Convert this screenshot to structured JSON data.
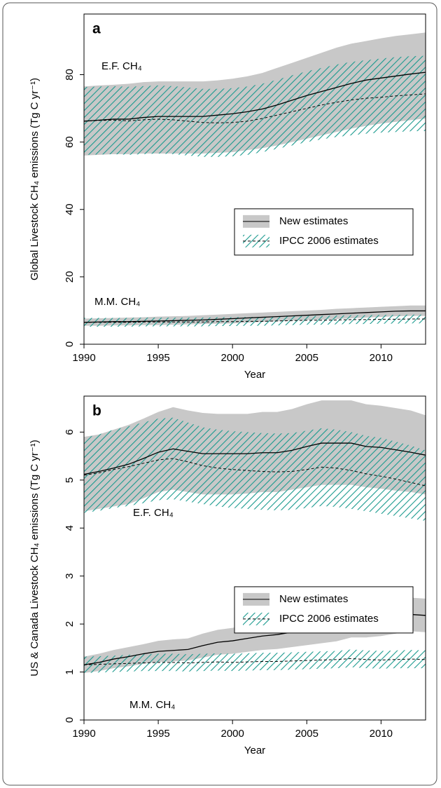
{
  "chart_data": [
    {
      "type": "band-line",
      "panel_label": "a",
      "xlabel": "Year",
      "ylabel": "Global Livestock CH₄ emissions (Tg C yr⁻¹)",
      "x": [
        1990,
        1991,
        1992,
        1993,
        1994,
        1995,
        1996,
        1997,
        1998,
        1999,
        2000,
        2001,
        2002,
        2003,
        2004,
        2005,
        2006,
        2007,
        2008,
        2009,
        2010,
        2011,
        2012,
        2013
      ],
      "xlim": [
        1990,
        2013
      ],
      "xticks": [
        1990,
        1995,
        2000,
        2005,
        2010
      ],
      "ylim": [
        0,
        98
      ],
      "yticks": [
        0,
        20,
        40,
        60,
        80
      ],
      "legend": "center-right",
      "group_labels": [
        "E.F. CH₄",
        "M.M. CH₄"
      ],
      "series": [
        {
          "name": "New estimates",
          "color": "#c8c8c8",
          "line_color": "#000000",
          "dash": false,
          "fill": "solid",
          "groups": [
            {
              "values": [
                66.2,
                66.5,
                66.8,
                66.8,
                67.3,
                67.6,
                67.6,
                67.6,
                67.6,
                68.0,
                68.4,
                69.0,
                69.8,
                71.0,
                72.4,
                73.8,
                75.0,
                76.2,
                77.4,
                78.4,
                79.0,
                79.6,
                80.2,
                80.7
              ],
              "upper": [
                76.5,
                76.8,
                77.0,
                77.3,
                77.8,
                78.0,
                78.0,
                78.0,
                78.0,
                78.3,
                78.8,
                79.5,
                80.5,
                82.0,
                83.5,
                85.0,
                86.5,
                88.0,
                89.2,
                90.0,
                90.8,
                91.5,
                92.0,
                92.5
              ],
              "lower": [
                56.0,
                56.2,
                56.4,
                56.4,
                56.6,
                56.6,
                56.6,
                56.6,
                56.6,
                56.8,
                57.0,
                57.6,
                58.2,
                59.0,
                60.0,
                61.0,
                62.0,
                63.0,
                64.0,
                64.8,
                65.5,
                66.0,
                66.5,
                67.0
              ]
            },
            {
              "values": [
                6.5,
                6.6,
                6.7,
                6.7,
                6.8,
                6.9,
                7.0,
                7.1,
                7.2,
                7.4,
                7.6,
                7.8,
                8.0,
                8.2,
                8.4,
                8.6,
                8.8,
                9.0,
                9.2,
                9.4,
                9.6,
                9.8,
                9.9,
                9.9
              ],
              "upper": [
                7.6,
                7.7,
                7.8,
                7.9,
                8.0,
                8.2,
                8.3,
                8.4,
                8.6,
                8.8,
                9.0,
                9.2,
                9.4,
                9.6,
                9.8,
                10.0,
                10.2,
                10.5,
                10.7,
                10.9,
                11.1,
                11.3,
                11.5,
                11.5
              ],
              "lower": [
                5.5,
                5.5,
                5.6,
                5.6,
                5.7,
                5.7,
                5.8,
                5.9,
                6.0,
                6.1,
                6.2,
                6.4,
                6.6,
                6.8,
                7.0,
                7.2,
                7.3,
                7.5,
                7.7,
                7.9,
                8.1,
                8.3,
                8.4,
                8.4
              ]
            }
          ]
        },
        {
          "name": "IPCC 2006 estimates",
          "color": "#1a9a8e",
          "line_color": "#000000",
          "dash": true,
          "fill": "hatch",
          "groups": [
            {
              "values": [
                66.2,
                66.4,
                66.5,
                66.3,
                66.6,
                66.8,
                66.6,
                66.2,
                65.8,
                65.7,
                65.8,
                66.2,
                67.0,
                68.0,
                69.0,
                70.0,
                71.0,
                71.8,
                72.5,
                73.0,
                73.3,
                73.7,
                74.0,
                74.3
              ],
              "upper": [
                76.3,
                76.5,
                76.6,
                76.4,
                76.6,
                76.8,
                76.6,
                76.2,
                75.8,
                75.8,
                76.0,
                76.5,
                77.3,
                78.5,
                79.8,
                81.0,
                82.0,
                83.0,
                83.8,
                84.3,
                84.8,
                85.2,
                85.5,
                85.6
              ],
              "lower": [
                56.2,
                56.3,
                56.4,
                56.2,
                56.4,
                56.6,
                56.4,
                56.0,
                55.6,
                55.6,
                55.8,
                56.2,
                57.0,
                58.0,
                59.0,
                60.0,
                60.8,
                61.5,
                62.0,
                62.5,
                62.8,
                63.0,
                63.2,
                63.3
              ]
            },
            {
              "values": [
                6.5,
                6.5,
                6.5,
                6.5,
                6.6,
                6.6,
                6.6,
                6.6,
                6.6,
                6.7,
                6.7,
                6.8,
                6.8,
                6.9,
                7.0,
                7.1,
                7.1,
                7.2,
                7.3,
                7.3,
                7.4,
                7.4,
                7.5,
                7.5
              ],
              "upper": [
                7.8,
                7.8,
                7.8,
                7.8,
                7.9,
                7.9,
                7.9,
                7.9,
                7.9,
                8.0,
                8.0,
                8.1,
                8.1,
                8.2,
                8.3,
                8.4,
                8.4,
                8.5,
                8.6,
                8.6,
                8.7,
                8.7,
                8.8,
                8.8
              ],
              "lower": [
                5.2,
                5.2,
                5.2,
                5.2,
                5.3,
                5.3,
                5.3,
                5.3,
                5.3,
                5.4,
                5.4,
                5.5,
                5.5,
                5.6,
                5.7,
                5.8,
                5.8,
                5.9,
                6.0,
                6.0,
                6.1,
                6.1,
                6.2,
                6.2
              ]
            }
          ]
        }
      ]
    },
    {
      "type": "band-line",
      "panel_label": "b",
      "xlabel": "Year",
      "ylabel": "US & Canada Livestock CH₄ emissions (Tg C yr⁻¹)",
      "x": [
        1990,
        1991,
        1992,
        1993,
        1994,
        1995,
        1996,
        1997,
        1998,
        1999,
        2000,
        2001,
        2002,
        2003,
        2004,
        2005,
        2006,
        2007,
        2008,
        2009,
        2010,
        2011,
        2012,
        2013
      ],
      "xlim": [
        1990,
        2013
      ],
      "xticks": [
        1990,
        1995,
        2000,
        2005,
        2010
      ],
      "ylim": [
        0,
        6.75
      ],
      "yticks": [
        0,
        1,
        2,
        3,
        4,
        5,
        6
      ],
      "legend": "center-right",
      "group_labels": [
        "E.F. CH₄",
        "M.M. CH₄"
      ],
      "series": [
        {
          "name": "New estimates",
          "color": "#c8c8c8",
          "line_color": "#000000",
          "dash": false,
          "fill": "solid",
          "groups": [
            {
              "values": [
                5.12,
                5.18,
                5.25,
                5.33,
                5.45,
                5.58,
                5.65,
                5.6,
                5.55,
                5.55,
                5.55,
                5.55,
                5.57,
                5.57,
                5.62,
                5.7,
                5.77,
                5.77,
                5.77,
                5.7,
                5.68,
                5.63,
                5.58,
                5.52
              ],
              "upper": [
                5.9,
                5.95,
                6.05,
                6.15,
                6.28,
                6.42,
                6.52,
                6.45,
                6.4,
                6.38,
                6.38,
                6.38,
                6.42,
                6.42,
                6.48,
                6.58,
                6.66,
                6.66,
                6.66,
                6.58,
                6.55,
                6.5,
                6.45,
                6.35
              ],
              "lower": [
                4.35,
                4.4,
                4.45,
                4.5,
                4.62,
                4.75,
                4.8,
                4.75,
                4.7,
                4.7,
                4.7,
                4.72,
                4.75,
                4.75,
                4.8,
                4.85,
                4.9,
                4.9,
                4.9,
                4.85,
                4.82,
                4.78,
                4.75,
                4.7
              ]
            },
            {
              "values": [
                1.15,
                1.2,
                1.27,
                1.32,
                1.38,
                1.43,
                1.45,
                1.47,
                1.55,
                1.62,
                1.65,
                1.7,
                1.75,
                1.78,
                1.83,
                1.88,
                1.93,
                1.98,
                2.06,
                2.06,
                2.1,
                2.15,
                2.2,
                2.18
              ],
              "upper": [
                1.32,
                1.38,
                1.46,
                1.52,
                1.58,
                1.65,
                1.68,
                1.7,
                1.8,
                1.88,
                1.92,
                1.98,
                2.04,
                2.08,
                2.14,
                2.2,
                2.26,
                2.32,
                2.4,
                2.4,
                2.45,
                2.5,
                2.55,
                2.53
              ],
              "lower": [
                0.98,
                1.02,
                1.08,
                1.12,
                1.17,
                1.21,
                1.22,
                1.24,
                1.3,
                1.36,
                1.38,
                1.42,
                1.46,
                1.48,
                1.52,
                1.56,
                1.6,
                1.64,
                1.72,
                1.72,
                1.75,
                1.8,
                1.85,
                1.83
              ]
            }
          ]
        },
        {
          "name": "IPCC 2006 estimates",
          "color": "#1a9a8e",
          "line_color": "#000000",
          "dash": true,
          "fill": "hatch",
          "groups": [
            {
              "values": [
                5.1,
                5.15,
                5.22,
                5.28,
                5.35,
                5.42,
                5.45,
                5.38,
                5.3,
                5.25,
                5.22,
                5.2,
                5.18,
                5.17,
                5.18,
                5.22,
                5.27,
                5.25,
                5.2,
                5.13,
                5.08,
                5.02,
                4.95,
                4.88
              ],
              "upper": [
                5.88,
                5.95,
                6.05,
                6.12,
                6.2,
                6.28,
                6.3,
                6.2,
                6.1,
                6.05,
                6.02,
                6.0,
                5.98,
                5.97,
                5.98,
                6.03,
                6.08,
                6.05,
                6.0,
                5.92,
                5.88,
                5.8,
                5.72,
                5.62
              ],
              "lower": [
                4.32,
                4.36,
                4.42,
                4.46,
                4.52,
                4.58,
                4.6,
                4.55,
                4.5,
                4.45,
                4.42,
                4.4,
                4.38,
                4.37,
                4.38,
                4.42,
                4.46,
                4.44,
                4.4,
                4.35,
                4.3,
                4.25,
                4.2,
                4.15
              ]
            },
            {
              "values": [
                1.15,
                1.16,
                1.17,
                1.18,
                1.19,
                1.2,
                1.2,
                1.19,
                1.2,
                1.21,
                1.2,
                1.21,
                1.22,
                1.22,
                1.23,
                1.24,
                1.25,
                1.26,
                1.28,
                1.26,
                1.25,
                1.26,
                1.27,
                1.26
              ],
              "upper": [
                1.32,
                1.33,
                1.34,
                1.36,
                1.37,
                1.38,
                1.38,
                1.37,
                1.38,
                1.39,
                1.38,
                1.39,
                1.4,
                1.4,
                1.41,
                1.42,
                1.43,
                1.44,
                1.47,
                1.45,
                1.44,
                1.45,
                1.46,
                1.45
              ],
              "lower": [
                0.98,
                0.99,
                1.0,
                1.01,
                1.02,
                1.02,
                1.02,
                1.01,
                1.02,
                1.03,
                1.02,
                1.03,
                1.04,
                1.04,
                1.05,
                1.06,
                1.07,
                1.08,
                1.1,
                1.08,
                1.07,
                1.08,
                1.08,
                1.08
              ]
            }
          ]
        }
      ]
    }
  ]
}
